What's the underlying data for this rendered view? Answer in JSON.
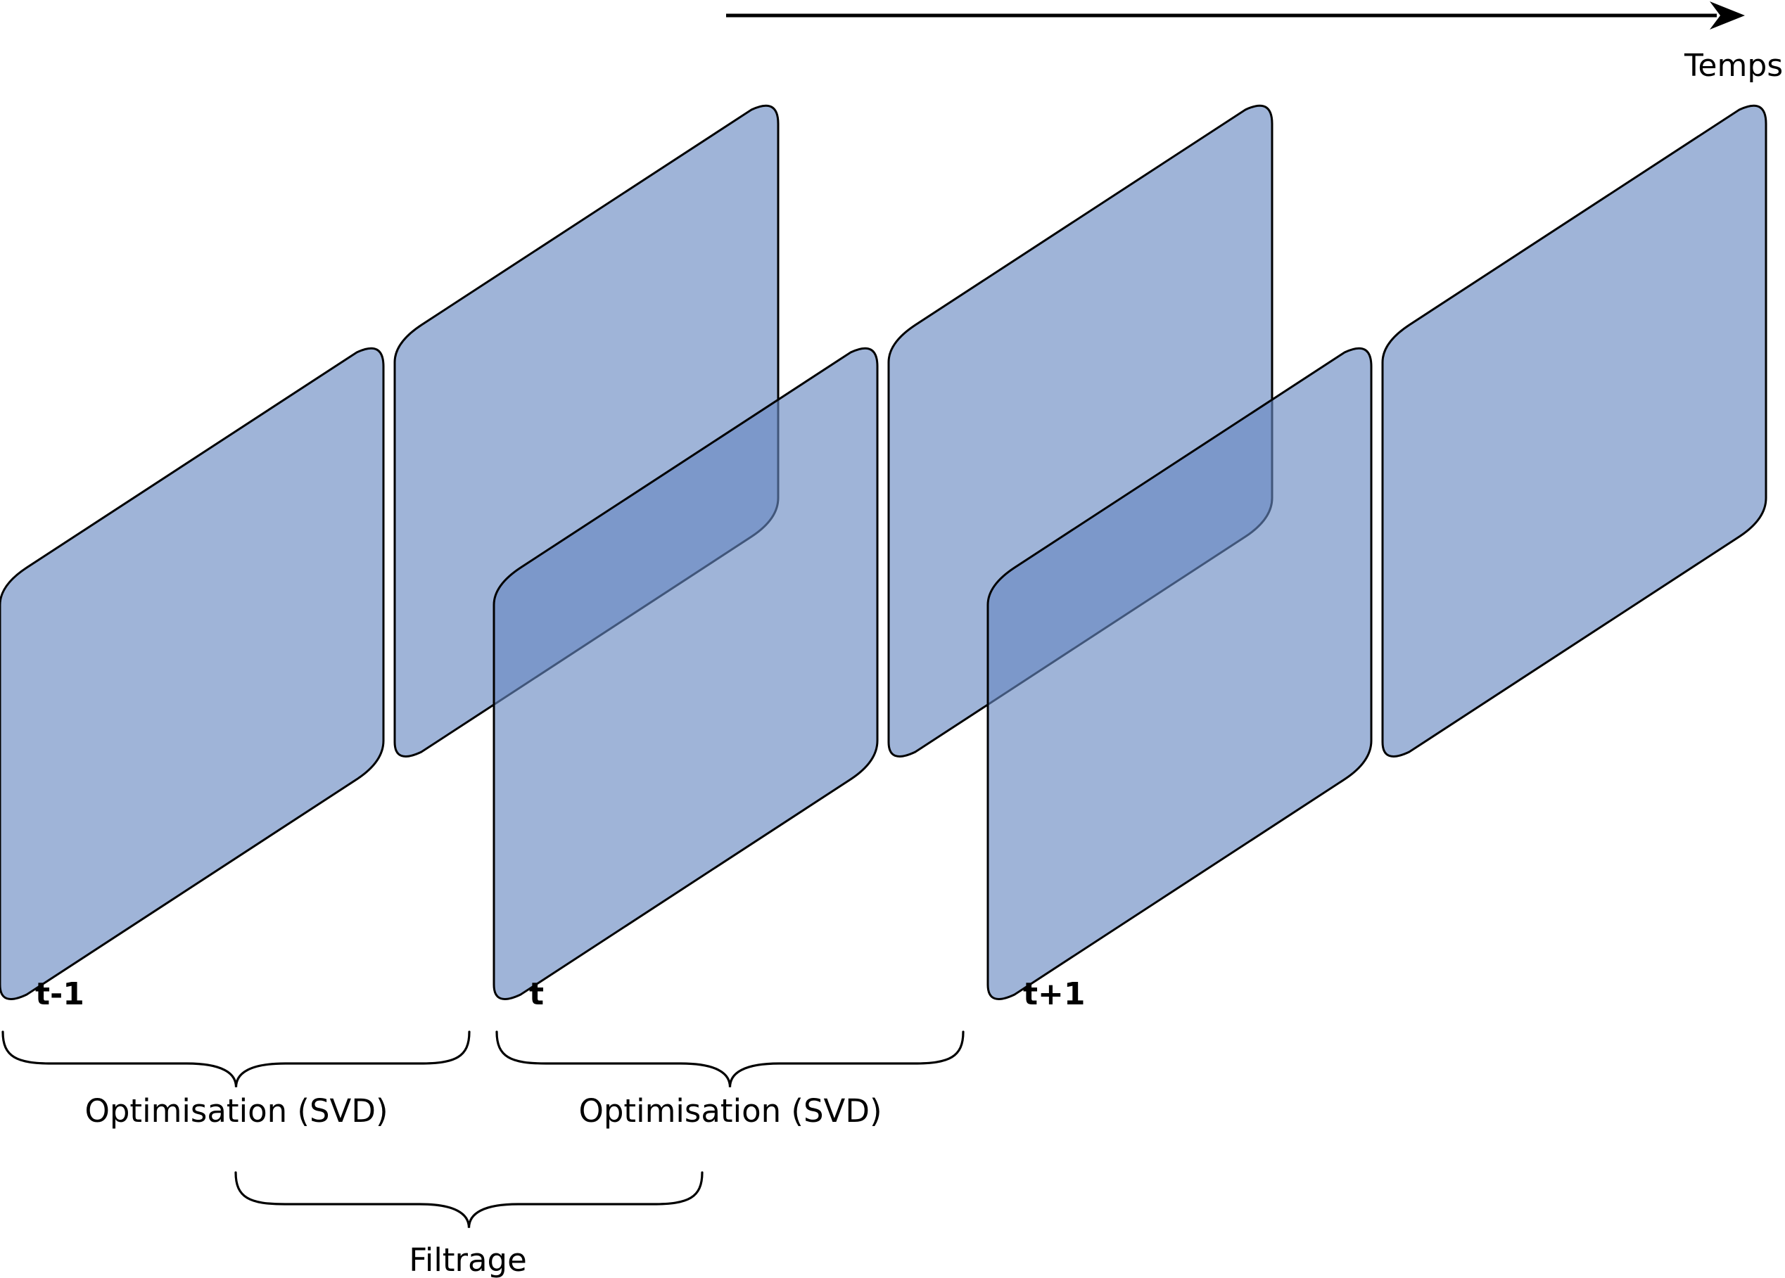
{
  "colors": {
    "plane_fill": "#6788c2",
    "stroke": "#000000",
    "background": "#ffffff"
  },
  "time_axis": {
    "label": "Temps"
  },
  "frames": [
    {
      "label": "t-1"
    },
    {
      "label": "t"
    },
    {
      "label": "t+1"
    }
  ],
  "braces": [
    {
      "label": "Optimisation (SVD)"
    },
    {
      "label": "Optimisation (SVD)"
    },
    {
      "label": "Filtrage"
    }
  ]
}
